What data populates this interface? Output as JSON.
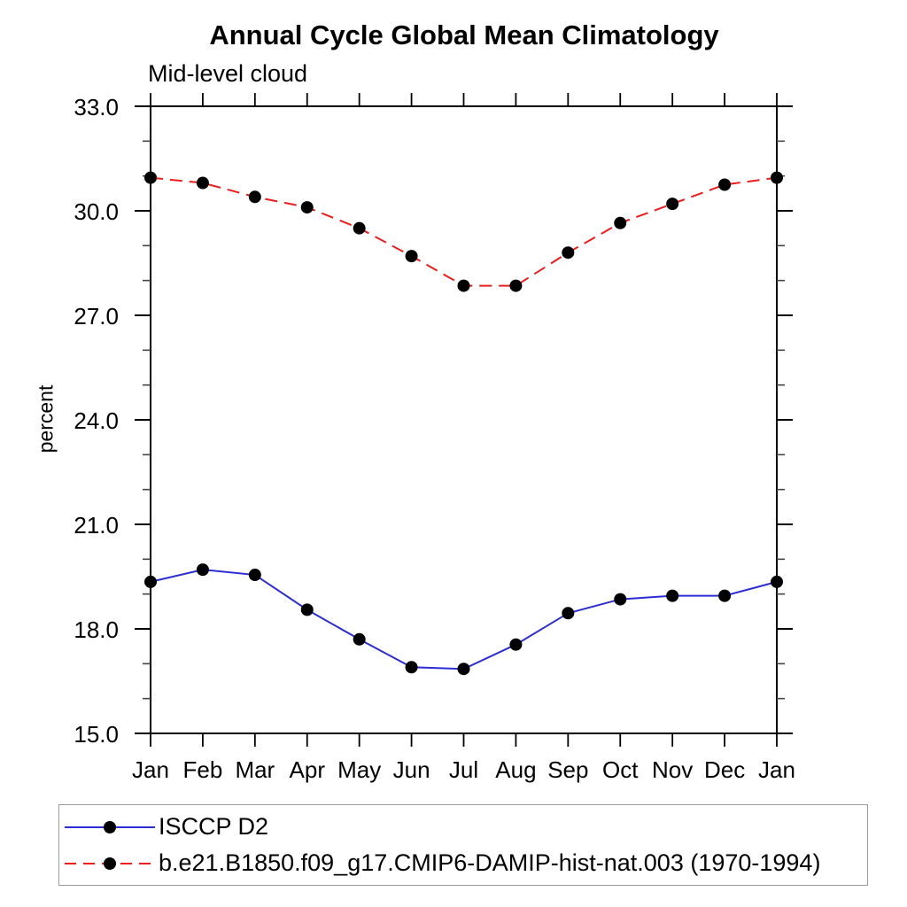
{
  "title": "Annual Cycle Global Mean Climatology",
  "subtitle": "Mid-level cloud",
  "ylabel": "percent",
  "chart_data": {
    "type": "line",
    "x": [
      "Jan",
      "Feb",
      "Mar",
      "Apr",
      "May",
      "Jun",
      "Jul",
      "Aug",
      "Sep",
      "Oct",
      "Nov",
      "Dec",
      "Jan"
    ],
    "series": [
      {
        "name": "ISCCP D2",
        "color": "#2d2dd6",
        "line_style": "solid",
        "marker": "black-dot",
        "values": [
          19.35,
          19.7,
          19.55,
          18.55,
          17.7,
          16.9,
          16.85,
          17.55,
          18.45,
          18.85,
          18.95,
          18.95,
          19.35
        ]
      },
      {
        "name": "b.e21.B1850.f09_g17.CMIP6-DAMIP-hist-nat.003 (1970-1994)",
        "color": "#ee1c1c",
        "line_style": "dashed",
        "marker": "black-dot",
        "values": [
          30.95,
          30.8,
          30.4,
          30.1,
          29.5,
          28.7,
          27.85,
          27.85,
          28.8,
          29.65,
          30.2,
          30.75,
          30.95
        ]
      }
    ],
    "ylim": [
      15,
      33
    ],
    "yticks": {
      "values": [
        15,
        18,
        21,
        24,
        27,
        30,
        33
      ],
      "labels": [
        "15.0",
        "18.0",
        "21.0",
        "24.0",
        "27.0",
        "30.0",
        "33.0"
      ],
      "minor_step": 1
    },
    "grid": false,
    "legend_position": "bottom-left-box",
    "marker_color": "#000000"
  }
}
